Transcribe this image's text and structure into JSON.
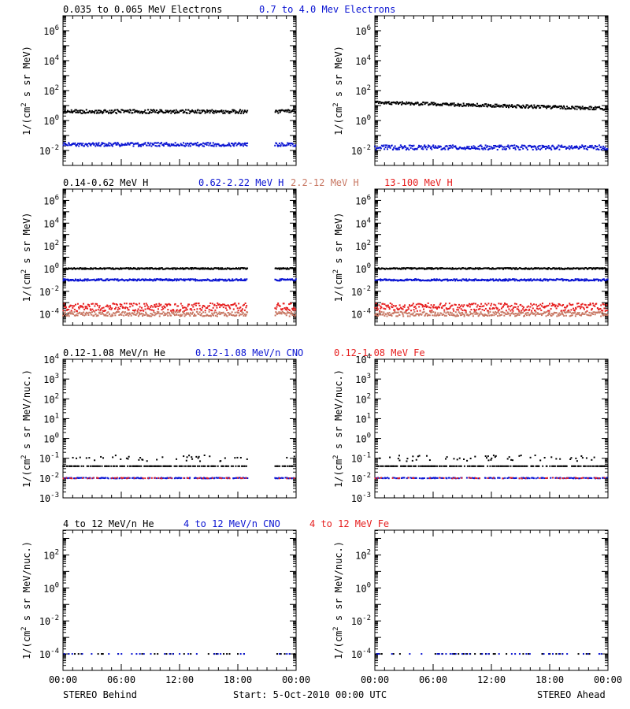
{
  "colors": {
    "black": "#000000",
    "blue": "#0a14d2",
    "salmon": "#c87864",
    "red": "#e61e1e"
  },
  "footer": {
    "left": "STEREO Behind",
    "center": "Start:  5-Oct-2010 00:00 UTC",
    "right": "STEREO Ahead"
  },
  "x_tick_labels": [
    "00:00",
    "06:00",
    "12:00",
    "18:00",
    "00:00"
  ],
  "chart_data": [
    {
      "type": "scatter",
      "row": 1,
      "panel": "STEREO Behind",
      "legend": [
        {
          "text": "0.035 to 0.065 MeV Electrons",
          "color": "black"
        },
        {
          "text": "0.7 to 4.0 Mev Electrons",
          "color": "blue"
        }
      ],
      "ylabel": "1/(cm^2 s sr MeV)",
      "yscale": "log",
      "ylim_exp": [
        -3,
        7
      ],
      "ytick_exps": [
        -2,
        0,
        2,
        4,
        6
      ],
      "xlim_hours": [
        0,
        24
      ],
      "gap_hours": [
        19.0,
        21.8
      ],
      "series": [
        {
          "color": "black",
          "log10_level": 0.6,
          "spread": 0.12
        },
        {
          "color": "blue",
          "log10_level": -1.6,
          "spread": 0.12
        }
      ]
    },
    {
      "type": "scatter",
      "row": 1,
      "panel": "STEREO Ahead",
      "legend": [],
      "ylabel": "1/(cm^2 s sr MeV)",
      "yscale": "log",
      "ylim_exp": [
        -3,
        7
      ],
      "ytick_exps": [
        -2,
        0,
        2,
        4,
        6
      ],
      "xlim_hours": [
        0,
        24
      ],
      "gap_hours": null,
      "series": [
        {
          "color": "black",
          "log10_level_start": 1.2,
          "log10_level_end": 0.8,
          "spread": 0.1
        },
        {
          "color": "blue",
          "log10_level": -1.8,
          "spread": 0.15
        }
      ]
    },
    {
      "type": "scatter",
      "row": 2,
      "panel": "STEREO Behind",
      "legend": [
        {
          "text": "0.14-0.62 MeV H",
          "color": "black"
        },
        {
          "text": "0.62-2.22 MeV H",
          "color": "blue"
        },
        {
          "text": "2.2-12 MeV H",
          "color": "salmon"
        },
        {
          "text": "13-100 MeV H",
          "color": "red"
        }
      ],
      "ylabel": "1/(cm^2 s sr MeV)",
      "yscale": "log",
      "ylim_exp": [
        -5,
        7
      ],
      "ytick_exps": [
        -4,
        -2,
        0,
        2,
        4,
        6
      ],
      "xlim_hours": [
        0,
        24
      ],
      "gap_hours": [
        19.0,
        21.8
      ],
      "series": [
        {
          "color": "black",
          "log10_level": 0.0,
          "spread": 0.06
        },
        {
          "color": "blue",
          "log10_level": -1.0,
          "spread": 0.08
        },
        {
          "color": "red",
          "log10_level": -3.4,
          "spread": 0.35
        },
        {
          "color": "salmon",
          "log10_level": -4.0,
          "spread": 0.2
        }
      ]
    },
    {
      "type": "scatter",
      "row": 2,
      "panel": "STEREO Ahead",
      "legend": [],
      "ylabel": "1/(cm^2 s sr MeV)",
      "yscale": "log",
      "ylim_exp": [
        -5,
        7
      ],
      "ytick_exps": [
        -4,
        -2,
        0,
        2,
        4,
        6
      ],
      "xlim_hours": [
        0,
        24
      ],
      "gap_hours": null,
      "series": [
        {
          "color": "black",
          "log10_level": 0.0,
          "spread": 0.06
        },
        {
          "color": "blue",
          "log10_level": -1.0,
          "spread": 0.08
        },
        {
          "color": "red",
          "log10_level": -3.4,
          "spread": 0.35
        },
        {
          "color": "salmon",
          "log10_level": -4.0,
          "spread": 0.2
        }
      ]
    },
    {
      "type": "scatter",
      "row": 3,
      "panel": "STEREO Behind",
      "legend": [
        {
          "text": "0.12-1.08 MeV/n He",
          "color": "black"
        },
        {
          "text": "0.12-1.08 MeV/n CNO",
          "color": "blue"
        },
        {
          "text": "0.12-1.08 MeV Fe",
          "color": "red"
        }
      ],
      "ylabel": "1/(cm^2 s sr MeV/nuc.)",
      "yscale": "log",
      "ylim_exp": [
        -3,
        4
      ],
      "ytick_exps": [
        -3,
        -2,
        -1,
        0,
        1,
        2,
        3,
        4
      ],
      "xlim_hours": [
        0,
        24
      ],
      "gap_hours": [
        19.0,
        21.8
      ],
      "series": [
        {
          "color": "black",
          "log10_level": -1.4,
          "spread": 0.3
        },
        {
          "color": "blue",
          "log10_level": -2.0,
          "spread": 0.02
        },
        {
          "color": "red",
          "log10_level": -2.0,
          "spread": 0.02
        }
      ]
    },
    {
      "type": "scatter",
      "row": 3,
      "panel": "STEREO Ahead",
      "legend": [],
      "ylabel": "1/(cm^2 s sr MeV/nuc.)",
      "yscale": "log",
      "ylim_exp": [
        -3,
        4
      ],
      "ytick_exps": [
        -3,
        -2,
        -1,
        0,
        1,
        2,
        3,
        4
      ],
      "xlim_hours": [
        0,
        24
      ],
      "gap_hours": null,
      "series": [
        {
          "color": "black",
          "log10_level": -1.3,
          "spread": 0.35
        },
        {
          "color": "blue",
          "log10_level": -2.0,
          "spread": 0.02
        },
        {
          "color": "red",
          "log10_level": -2.0,
          "spread": 0.02
        }
      ]
    },
    {
      "type": "scatter",
      "row": 4,
      "panel": "STEREO Behind",
      "legend": [
        {
          "text": "4 to 12 MeV/n He",
          "color": "black"
        },
        {
          "text": "4 to 12 MeV/n CNO",
          "color": "blue"
        },
        {
          "text": "4 to 12 MeV Fe",
          "color": "red"
        }
      ],
      "ylabel": "1/(cm^2 s sr MeV/nuc.)",
      "yscale": "log",
      "ylim_exp": [
        -5,
        3.5
      ],
      "ytick_exps": [
        -4,
        -2,
        0,
        2
      ],
      "xlim_hours": [
        0,
        24
      ],
      "gap_hours": [
        19.0,
        21.8
      ],
      "series": [
        {
          "color": "black",
          "log10_level": -4.0,
          "spread": 0.0,
          "sparse": true
        },
        {
          "color": "blue",
          "log10_level": -4.0,
          "spread": 0.0,
          "sparse": true
        }
      ]
    },
    {
      "type": "scatter",
      "row": 4,
      "panel": "STEREO Ahead",
      "legend": [],
      "ylabel": "1/(cm^2 s sr MeV/nuc.)",
      "yscale": "log",
      "ylim_exp": [
        -5,
        3.5
      ],
      "ytick_exps": [
        -4,
        -2,
        0,
        2
      ],
      "xlim_hours": [
        0,
        24
      ],
      "gap_hours": null,
      "series": [
        {
          "color": "black",
          "log10_level": -4.0,
          "spread": 0.0,
          "sparse": true
        },
        {
          "color": "blue",
          "log10_level": -4.0,
          "spread": 0.0,
          "sparse": true
        }
      ]
    }
  ]
}
